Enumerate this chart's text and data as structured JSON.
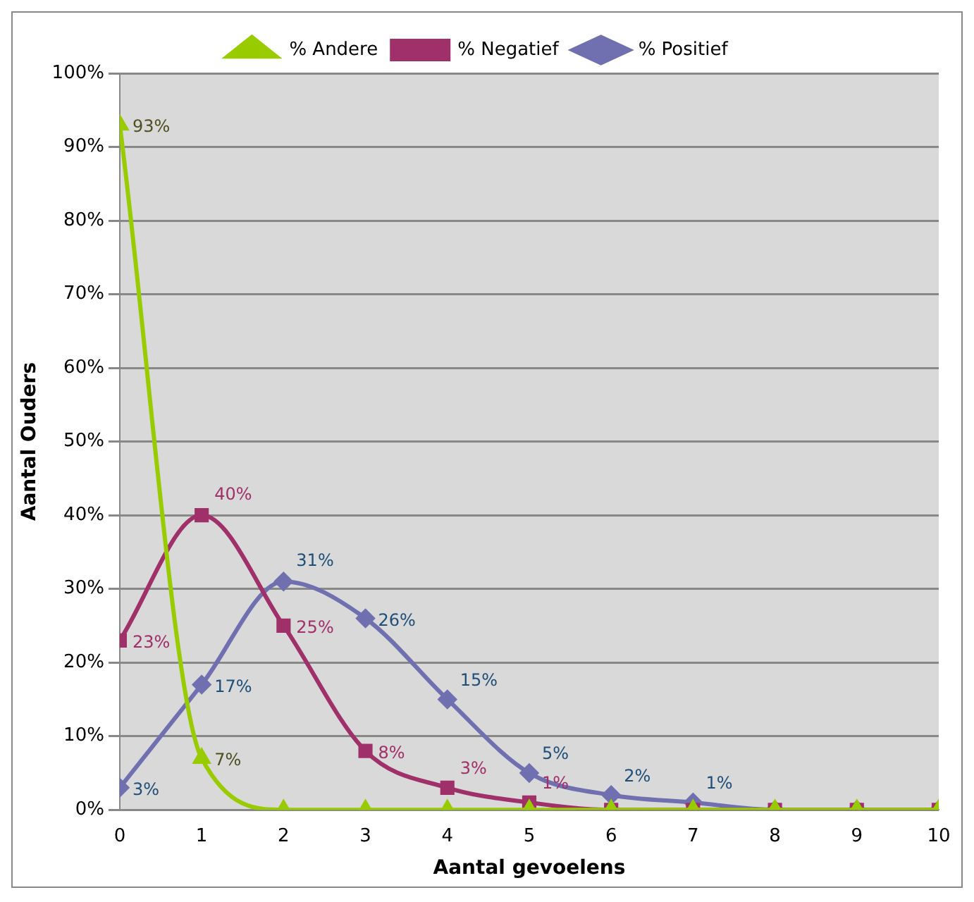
{
  "chart_data": {
    "type": "line",
    "xlabel": "Aantal gevoelens",
    "ylabel": "Aantal Ouders",
    "x": [
      0,
      1,
      2,
      3,
      4,
      5,
      6,
      7,
      8,
      9,
      10
    ],
    "xlim": [
      0,
      10
    ],
    "xticks": [
      0,
      1,
      2,
      3,
      4,
      5,
      6,
      7,
      8,
      9,
      10
    ],
    "ylim": [
      0,
      100
    ],
    "yticks": [
      {
        "value": 0,
        "label": "0%"
      },
      {
        "value": 10,
        "label": "10%"
      },
      {
        "value": 20,
        "label": "20%"
      },
      {
        "value": 30,
        "label": "30%"
      },
      {
        "value": 40,
        "label": "40%"
      },
      {
        "value": 50,
        "label": "50%"
      },
      {
        "value": 60,
        "label": "60%"
      },
      {
        "value": 70,
        "label": "70%"
      },
      {
        "value": 80,
        "label": "80%"
      },
      {
        "value": 90,
        "label": "90%"
      },
      {
        "value": 100,
        "label": "100%"
      }
    ],
    "grid": "y",
    "legend": "top",
    "series": [
      {
        "name": "% Positief",
        "color": "#7070b0",
        "marker": "diamond",
        "values": [
          3,
          17,
          31,
          26,
          15,
          5,
          2,
          1,
          0,
          0,
          0
        ],
        "value_labels": [
          "3%",
          "17%",
          "31%",
          "26%",
          "15%",
          "5%",
          "2%",
          "1%",
          null,
          null,
          null
        ]
      },
      {
        "name": "% Negatief",
        "color": "#a0306a",
        "marker": "square",
        "values": [
          23,
          40,
          25,
          8,
          3,
          1,
          0,
          0,
          0,
          0,
          0
        ],
        "value_labels": [
          "23%",
          "40%",
          "25%",
          "8%",
          "3%",
          "1%",
          null,
          null,
          null,
          null,
          null
        ]
      },
      {
        "name": "% Andere",
        "color": "#99cc00",
        "marker": "triangle",
        "values": [
          93,
          7,
          0,
          0,
          0,
          0,
          0,
          0,
          0,
          0,
          0
        ],
        "value_labels": [
          "93%",
          "7%",
          null,
          null,
          null,
          null,
          null,
          null,
          null,
          null,
          null
        ]
      }
    ]
  }
}
